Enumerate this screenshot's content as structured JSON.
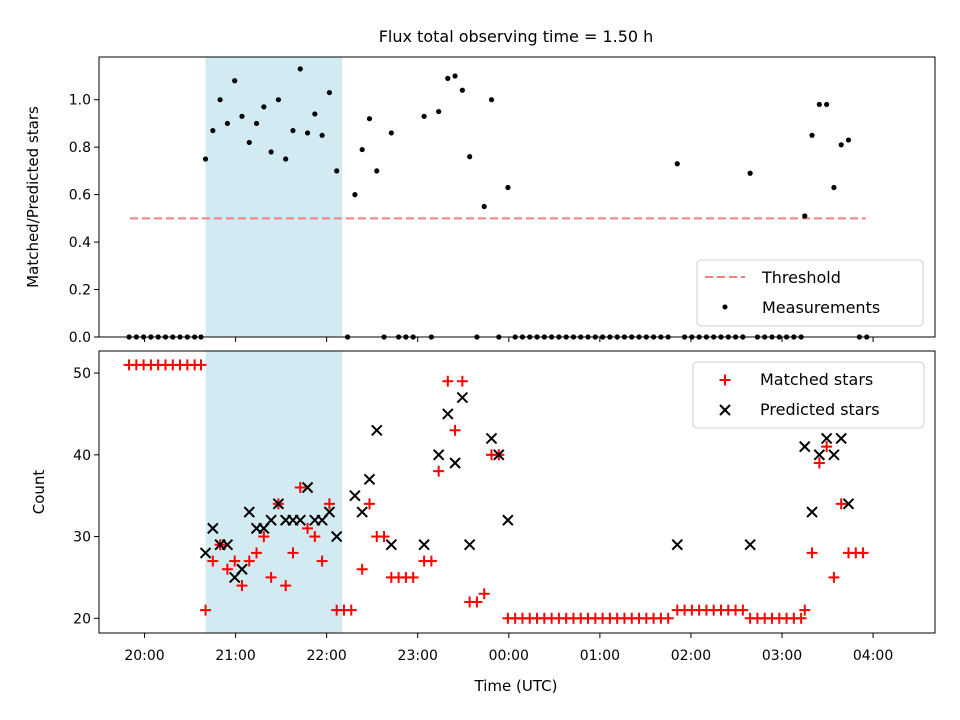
{
  "title": "Flux total observing time = 1.50 h",
  "colors": {
    "threshold": "#f08080",
    "measurements": "#000000",
    "matched": "#ff0000",
    "predicted": "#000000",
    "highlight": "#add8e6"
  },
  "chart_data": [
    {
      "type": "scatter",
      "ylabel": "Matched/Predicted stars",
      "ylim": [
        0,
        1.18
      ],
      "yticks": [
        "0.0",
        "0.2",
        "0.4",
        "0.6",
        "0.8",
        "1.0"
      ],
      "xlim": [
        -0.5,
        8.68
      ],
      "highlight_span": [
        0.67,
        2.17
      ],
      "threshold": {
        "value": 0.5,
        "x_range": [
          -0.16,
          7.92
        ],
        "label": "Threshold"
      },
      "legend": {
        "position": "lower right",
        "entries": [
          "Threshold",
          "Measurements"
        ]
      },
      "series": [
        {
          "name": "Measurements",
          "points": [
            [
              -0.17,
              0
            ],
            [
              -0.09,
              0
            ],
            [
              -0.01,
              0
            ],
            [
              0.07,
              0
            ],
            [
              0.15,
              0
            ],
            [
              0.23,
              0
            ],
            [
              0.31,
              0
            ],
            [
              0.39,
              0
            ],
            [
              0.47,
              0
            ],
            [
              0.55,
              0
            ],
            [
              0.62,
              0
            ],
            [
              0.67,
              0.75
            ],
            [
              0.75,
              0.87
            ],
            [
              0.83,
              1.0
            ],
            [
              0.91,
              0.9
            ],
            [
              0.99,
              1.08
            ],
            [
              1.07,
              0.93
            ],
            [
              1.15,
              0.82
            ],
            [
              1.23,
              0.9
            ],
            [
              1.31,
              0.97
            ],
            [
              1.39,
              0.78
            ],
            [
              1.47,
              1.0
            ],
            [
              1.55,
              0.75
            ],
            [
              1.63,
              0.87
            ],
            [
              1.71,
              1.13
            ],
            [
              1.79,
              0.86
            ],
            [
              1.87,
              0.94
            ],
            [
              1.95,
              0.85
            ],
            [
              2.03,
              1.03
            ],
            [
              2.11,
              0.7
            ],
            [
              2.23,
              0
            ],
            [
              2.31,
              0.6
            ],
            [
              2.39,
              0.79
            ],
            [
              2.47,
              0.92
            ],
            [
              2.55,
              0.7
            ],
            [
              2.63,
              0
            ],
            [
              2.71,
              0.86
            ],
            [
              2.79,
              0
            ],
            [
              2.87,
              0
            ],
            [
              2.95,
              0
            ],
            [
              3.07,
              0.93
            ],
            [
              3.15,
              0
            ],
            [
              3.23,
              0.95
            ],
            [
              3.33,
              1.09
            ],
            [
              3.41,
              1.1
            ],
            [
              3.49,
              1.04
            ],
            [
              3.57,
              0.76
            ],
            [
              3.65,
              0
            ],
            [
              3.73,
              0.55
            ],
            [
              3.81,
              1.0
            ],
            [
              3.89,
              0
            ],
            [
              3.99,
              0.63
            ],
            [
              4.07,
              0
            ],
            [
              4.15,
              0
            ],
            [
              4.23,
              0
            ],
            [
              4.31,
              0
            ],
            [
              4.39,
              0
            ],
            [
              4.47,
              0
            ],
            [
              4.55,
              0
            ],
            [
              4.63,
              0
            ],
            [
              4.71,
              0
            ],
            [
              4.79,
              0
            ],
            [
              4.87,
              0
            ],
            [
              4.95,
              0
            ],
            [
              5.03,
              0
            ],
            [
              5.11,
              0
            ],
            [
              5.19,
              0
            ],
            [
              5.27,
              0
            ],
            [
              5.35,
              0
            ],
            [
              5.43,
              0
            ],
            [
              5.51,
              0
            ],
            [
              5.59,
              0
            ],
            [
              5.67,
              0
            ],
            [
              5.75,
              0
            ],
            [
              5.85,
              0.73
            ],
            [
              5.93,
              0
            ],
            [
              6.01,
              0
            ],
            [
              6.09,
              0
            ],
            [
              6.17,
              0
            ],
            [
              6.25,
              0
            ],
            [
              6.33,
              0
            ],
            [
              6.41,
              0
            ],
            [
              6.49,
              0
            ],
            [
              6.57,
              0
            ],
            [
              6.65,
              0.69
            ],
            [
              6.73,
              0
            ],
            [
              6.81,
              0
            ],
            [
              6.89,
              0
            ],
            [
              6.97,
              0
            ],
            [
              7.05,
              0
            ],
            [
              7.13,
              0
            ],
            [
              7.21,
              0
            ],
            [
              7.25,
              0.51
            ],
            [
              7.33,
              0.85
            ],
            [
              7.41,
              0.98
            ],
            [
              7.49,
              0.98
            ],
            [
              7.57,
              0.63
            ],
            [
              7.65,
              0.81
            ],
            [
              7.73,
              0.83
            ],
            [
              7.85,
              0
            ],
            [
              7.93,
              0
            ]
          ]
        }
      ]
    },
    {
      "type": "scatter",
      "xlabel": "Time (UTC)",
      "ylabel": "Count",
      "ylim": [
        18.2,
        52.7
      ],
      "yticks": [
        "20",
        "30",
        "40",
        "50"
      ],
      "xlim": [
        -0.5,
        8.68
      ],
      "xticks": [
        "20:00",
        "21:00",
        "22:00",
        "23:00",
        "00:00",
        "01:00",
        "02:00",
        "03:00",
        "04:00"
      ],
      "highlight_span": [
        0.67,
        2.17
      ],
      "legend": {
        "position": "upper right",
        "entries": [
          "Matched stars",
          "Predicted stars"
        ]
      },
      "series": [
        {
          "name": "Matched stars",
          "marker": "+",
          "points": [
            [
              -0.17,
              51
            ],
            [
              -0.09,
              51
            ],
            [
              -0.01,
              51
            ],
            [
              0.07,
              51
            ],
            [
              0.15,
              51
            ],
            [
              0.23,
              51
            ],
            [
              0.31,
              51
            ],
            [
              0.39,
              51
            ],
            [
              0.47,
              51
            ],
            [
              0.55,
              51
            ],
            [
              0.62,
              51
            ],
            [
              0.67,
              21
            ],
            [
              0.75,
              27
            ],
            [
              0.83,
              29
            ],
            [
              0.91,
              26
            ],
            [
              0.99,
              27
            ],
            [
              1.07,
              24
            ],
            [
              1.15,
              27
            ],
            [
              1.23,
              28
            ],
            [
              1.31,
              30
            ],
            [
              1.39,
              25
            ],
            [
              1.47,
              34
            ],
            [
              1.55,
              24
            ],
            [
              1.63,
              28
            ],
            [
              1.71,
              36
            ],
            [
              1.79,
              31
            ],
            [
              1.87,
              30
            ],
            [
              1.95,
              27
            ],
            [
              2.03,
              34
            ],
            [
              2.11,
              21
            ],
            [
              2.19,
              21
            ],
            [
              2.27,
              21
            ],
            [
              2.39,
              26
            ],
            [
              2.47,
              34
            ],
            [
              2.55,
              30
            ],
            [
              2.63,
              30
            ],
            [
              2.71,
              25
            ],
            [
              2.79,
              25
            ],
            [
              2.87,
              25
            ],
            [
              2.95,
              25
            ],
            [
              3.07,
              27
            ],
            [
              3.15,
              27
            ],
            [
              3.23,
              38
            ],
            [
              3.33,
              49
            ],
            [
              3.41,
              43
            ],
            [
              3.49,
              49
            ],
            [
              3.57,
              22
            ],
            [
              3.65,
              22
            ],
            [
              3.73,
              23
            ],
            [
              3.81,
              40
            ],
            [
              3.89,
              40
            ],
            [
              3.99,
              20
            ],
            [
              4.07,
              20
            ],
            [
              4.15,
              20
            ],
            [
              4.23,
              20
            ],
            [
              4.31,
              20
            ],
            [
              4.39,
              20
            ],
            [
              4.47,
              20
            ],
            [
              4.55,
              20
            ],
            [
              4.63,
              20
            ],
            [
              4.71,
              20
            ],
            [
              4.79,
              20
            ],
            [
              4.87,
              20
            ],
            [
              4.95,
              20
            ],
            [
              5.03,
              20
            ],
            [
              5.11,
              20
            ],
            [
              5.19,
              20
            ],
            [
              5.27,
              20
            ],
            [
              5.35,
              20
            ],
            [
              5.43,
              20
            ],
            [
              5.51,
              20
            ],
            [
              5.59,
              20
            ],
            [
              5.67,
              20
            ],
            [
              5.75,
              20
            ],
            [
              5.85,
              21
            ],
            [
              5.93,
              21
            ],
            [
              6.01,
              21
            ],
            [
              6.09,
              21
            ],
            [
              6.17,
              21
            ],
            [
              6.25,
              21
            ],
            [
              6.33,
              21
            ],
            [
              6.41,
              21
            ],
            [
              6.49,
              21
            ],
            [
              6.57,
              21
            ],
            [
              6.65,
              20
            ],
            [
              6.73,
              20
            ],
            [
              6.81,
              20
            ],
            [
              6.89,
              20
            ],
            [
              6.97,
              20
            ],
            [
              7.05,
              20
            ],
            [
              7.13,
              20
            ],
            [
              7.21,
              20
            ],
            [
              7.25,
              21
            ],
            [
              7.33,
              28
            ],
            [
              7.41,
              39
            ],
            [
              7.49,
              41
            ],
            [
              7.57,
              25
            ],
            [
              7.65,
              34
            ],
            [
              7.73,
              28
            ],
            [
              7.81,
              28
            ],
            [
              7.89,
              28
            ]
          ]
        },
        {
          "name": "Predicted stars",
          "marker": "x",
          "points": [
            [
              0.67,
              28
            ],
            [
              0.75,
              31
            ],
            [
              0.83,
              29
            ],
            [
              0.91,
              29
            ],
            [
              0.99,
              25
            ],
            [
              1.07,
              26
            ],
            [
              1.15,
              33
            ],
            [
              1.23,
              31
            ],
            [
              1.31,
              31
            ],
            [
              1.39,
              32
            ],
            [
              1.47,
              34
            ],
            [
              1.55,
              32
            ],
            [
              1.63,
              32
            ],
            [
              1.71,
              32
            ],
            [
              1.79,
              36
            ],
            [
              1.87,
              32
            ],
            [
              1.95,
              32
            ],
            [
              2.03,
              33
            ],
            [
              2.11,
              30
            ],
            [
              2.31,
              35
            ],
            [
              2.39,
              33
            ],
            [
              2.47,
              37
            ],
            [
              2.55,
              43
            ],
            [
              2.71,
              29
            ],
            [
              3.07,
              29
            ],
            [
              3.23,
              40
            ],
            [
              3.33,
              45
            ],
            [
              3.41,
              39
            ],
            [
              3.49,
              47
            ],
            [
              3.57,
              29
            ],
            [
              3.81,
              42
            ],
            [
              3.89,
              40
            ],
            [
              3.99,
              32
            ],
            [
              5.85,
              29
            ],
            [
              6.65,
              29
            ],
            [
              7.25,
              41
            ],
            [
              7.33,
              33
            ],
            [
              7.41,
              40
            ],
            [
              7.49,
              42
            ],
            [
              7.57,
              40
            ],
            [
              7.65,
              42
            ],
            [
              7.73,
              34
            ]
          ]
        }
      ]
    }
  ]
}
